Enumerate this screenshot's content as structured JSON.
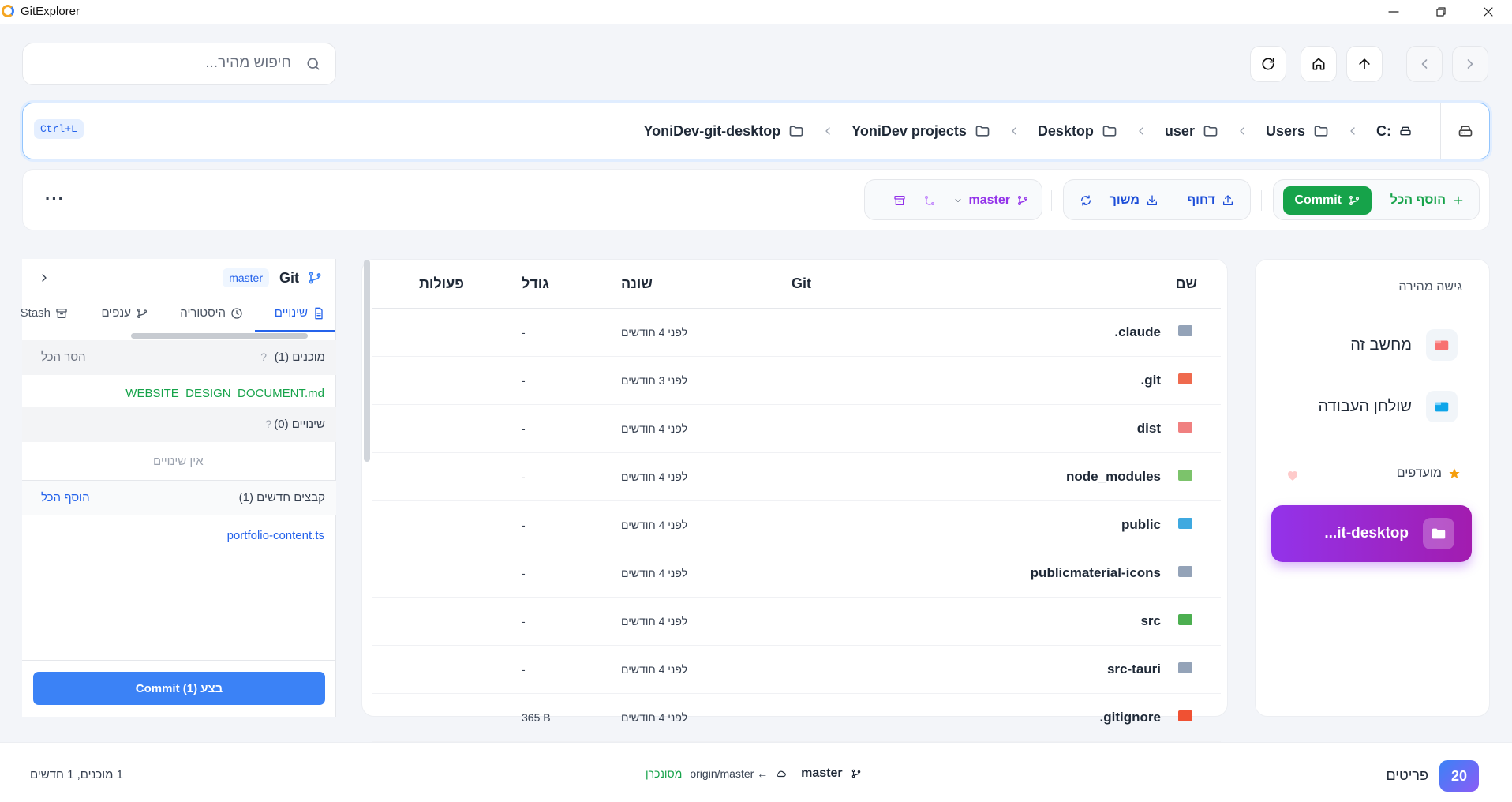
{
  "window": {
    "title": "GitExplorer"
  },
  "search": {
    "placeholder": "חיפוש מהיר..."
  },
  "address": {
    "shortcut": "Ctrl+L",
    "crumbs": [
      "C:",
      "Users",
      "user",
      "Desktop",
      "YoniDev projects",
      "YoniDev-git-desktop"
    ]
  },
  "toolbar": {
    "add_all": "הוסף הכל",
    "commit": "Commit",
    "push": "דחוף",
    "pull": "משוך",
    "branch": "master",
    "more": "···"
  },
  "quick_access": {
    "title": "גישה מהירה",
    "items": [
      {
        "label": "מחשב זה",
        "icon": "computer-icon"
      },
      {
        "label": "שולחן העבודה",
        "icon": "desktop-icon"
      }
    ],
    "favorites_label": "מועדפים",
    "favorite_item": "...it-desktop"
  },
  "file_list": {
    "headers": {
      "name": "שם",
      "git": "Git",
      "year": "שונה",
      "size": "גודל",
      "actions": "פעולות"
    },
    "rows": [
      {
        "name": ".claude",
        "modified": "לפני 4 חודשים",
        "size": "-",
        "icon_color": "#94a3b8"
      },
      {
        "name": ".git",
        "modified": "לפני 3 חודשים",
        "size": "-",
        "icon_color": "#ef6a4e"
      },
      {
        "name": "dist",
        "modified": "לפני 4 חודשים",
        "size": "-",
        "icon_color": "#f08080"
      },
      {
        "name": "node_modules",
        "modified": "לפני 4 חודשים",
        "size": "-",
        "icon_color": "#7cc36b"
      },
      {
        "name": "public",
        "modified": "לפני 4 חודשים",
        "size": "-",
        "icon_color": "#3fa9e0"
      },
      {
        "name": "publicmaterial-icons",
        "modified": "לפני 4 חודשים",
        "size": "-",
        "icon_color": "#94a3b8"
      },
      {
        "name": "src",
        "modified": "לפני 4 חודשים",
        "size": "-",
        "icon_color": "#4caf50"
      },
      {
        "name": "src-tauri",
        "modified": "לפני 4 חודשים",
        "size": "-",
        "icon_color": "#94a3b8"
      },
      {
        "name": ".gitignore",
        "modified": "לפני 4 חודשים",
        "size": "365 B",
        "icon_color": "#f05133"
      }
    ]
  },
  "git_panel": {
    "title": "Git",
    "branch": "master",
    "tabs": [
      "שינויים",
      "היסטוריה",
      "ענפים",
      "Stash"
    ],
    "staged": {
      "title": "מוכנים (1)",
      "help": "?",
      "action": "הסר הכל",
      "files": [
        "WEBSITE_DESIGN_DOCUMENT.md"
      ]
    },
    "changes": {
      "title": "שינויים (0)",
      "help": "?",
      "empty": "אין שינויים"
    },
    "untracked": {
      "title": "קבצים חדשים (1)",
      "action": "הוסף הכל",
      "files": [
        "portfolio-content.ts"
      ]
    },
    "commit_button": "בצע (1) Commit"
  },
  "status": {
    "count": "20",
    "count_label": "פריטים",
    "branch": "master",
    "remote": "origin/master ←",
    "sync": "מסונכרן",
    "summary": "1 מוכנים, 1 חדשים"
  },
  "colors": {
    "accent": "#3b82f6",
    "commit_green": "#16a34a",
    "branch_purple": "#9333ea"
  }
}
